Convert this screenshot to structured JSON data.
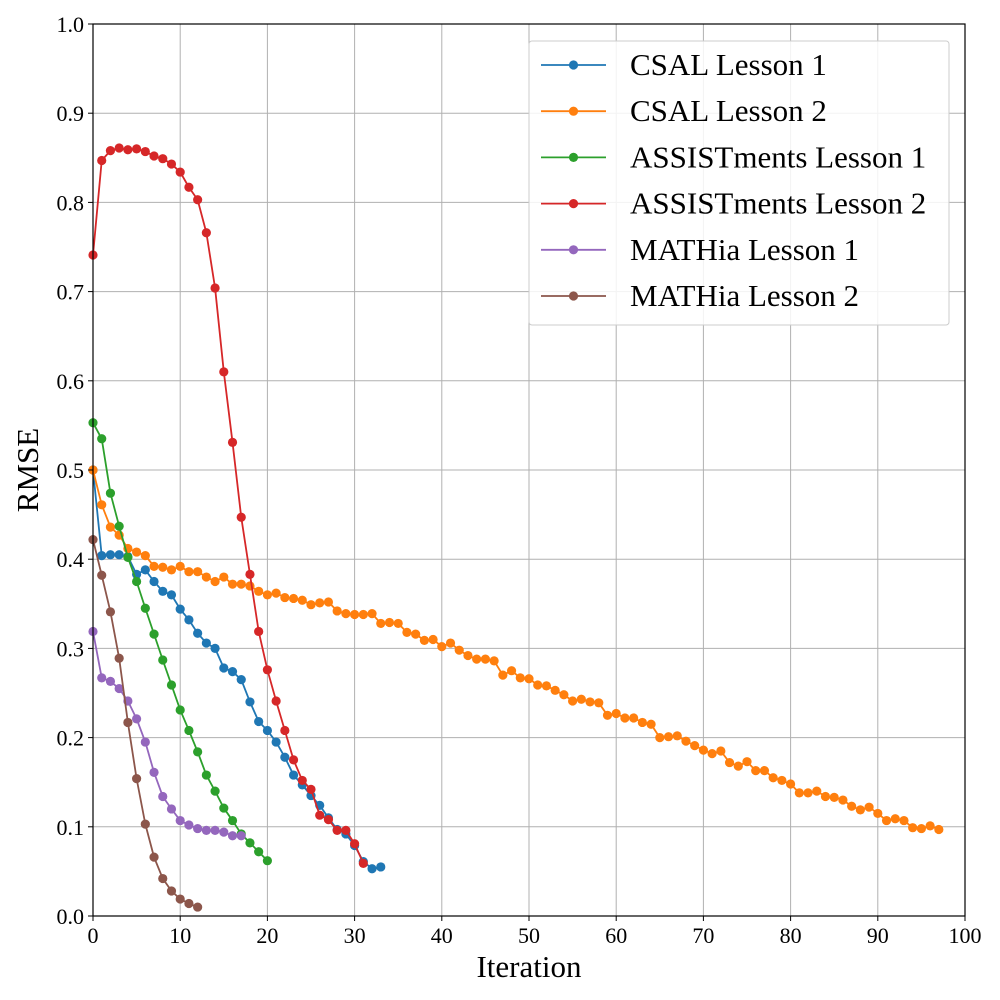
{
  "chart_data": {
    "type": "line",
    "xlabel": "Iteration",
    "ylabel": "RMSE",
    "xlim": [
      0,
      100
    ],
    "ylim": [
      0,
      1.0
    ],
    "xticks": [
      "0",
      "10",
      "20",
      "30",
      "40",
      "50",
      "60",
      "70",
      "80",
      "90",
      "100"
    ],
    "yticks": [
      "0.0",
      "0.1",
      "0.2",
      "0.3",
      "0.4",
      "0.5",
      "0.6",
      "0.7",
      "0.8",
      "0.9",
      "1.0"
    ],
    "grid": true,
    "legend_position": "top-right",
    "series": [
      {
        "name": "CSAL Lesson 1",
        "color": "#1f77b4",
        "values": [
          0.5,
          0.404,
          0.405,
          0.405,
          0.403,
          0.383,
          0.388,
          0.375,
          0.364,
          0.36,
          0.344,
          0.332,
          0.317,
          0.306,
          0.3,
          0.278,
          0.274,
          0.265,
          0.24,
          0.218,
          0.208,
          0.195,
          0.178,
          0.158,
          0.147,
          0.135,
          0.124,
          0.11,
          0.097,
          0.092,
          0.079,
          0.061,
          0.053,
          0.055
        ]
      },
      {
        "name": "CSAL Lesson 2",
        "color": "#ff7f0e",
        "values": [
          0.5,
          0.461,
          0.436,
          0.427,
          0.412,
          0.408,
          0.404,
          0.392,
          0.391,
          0.388,
          0.392,
          0.386,
          0.386,
          0.38,
          0.375,
          0.38,
          0.372,
          0.372,
          0.37,
          0.364,
          0.36,
          0.362,
          0.357,
          0.356,
          0.354,
          0.349,
          0.351,
          0.352,
          0.342,
          0.339,
          0.338,
          0.338,
          0.339,
          0.328,
          0.329,
          0.328,
          0.318,
          0.316,
          0.309,
          0.31,
          0.302,
          0.306,
          0.298,
          0.292,
          0.288,
          0.288,
          0.286,
          0.27,
          0.275,
          0.267,
          0.266,
          0.259,
          0.258,
          0.253,
          0.248,
          0.241,
          0.243,
          0.24,
          0.239,
          0.225,
          0.227,
          0.222,
          0.222,
          0.217,
          0.215,
          0.2,
          0.201,
          0.202,
          0.196,
          0.191,
          0.186,
          0.182,
          0.185,
          0.172,
          0.168,
          0.173,
          0.163,
          0.163,
          0.155,
          0.152,
          0.148,
          0.138,
          0.138,
          0.14,
          0.134,
          0.133,
          0.13,
          0.123,
          0.119,
          0.122,
          0.115,
          0.107,
          0.109,
          0.107,
          0.099,
          0.098,
          0.101,
          0.097
        ]
      },
      {
        "name": "ASSISTments Lesson 1",
        "color": "#2ca02c",
        "values": [
          0.553,
          0.535,
          0.474,
          0.437,
          0.402,
          0.375,
          0.345,
          0.316,
          0.287,
          0.259,
          0.231,
          0.208,
          0.184,
          0.158,
          0.14,
          0.121,
          0.107,
          0.092,
          0.082,
          0.072,
          0.062
        ]
      },
      {
        "name": "ASSISTments Lesson 2",
        "color": "#d62728",
        "values": [
          0.741,
          0.847,
          0.858,
          0.861,
          0.859,
          0.86,
          0.857,
          0.852,
          0.849,
          0.843,
          0.834,
          0.817,
          0.803,
          0.766,
          0.704,
          0.61,
          0.531,
          0.447,
          0.383,
          0.319,
          0.276,
          0.241,
          0.208,
          0.175,
          0.152,
          0.142,
          0.113,
          0.108,
          0.096,
          0.096,
          0.081,
          0.059
        ]
      },
      {
        "name": "MATHia Lesson 1",
        "color": "#9467bd",
        "values": [
          0.319,
          0.267,
          0.263,
          0.255,
          0.241,
          0.221,
          0.195,
          0.161,
          0.134,
          0.12,
          0.107,
          0.102,
          0.098,
          0.096,
          0.096,
          0.094,
          0.09,
          0.09
        ]
      },
      {
        "name": "MATHia Lesson 2",
        "color": "#8c564b",
        "values": [
          0.422,
          0.382,
          0.341,
          0.289,
          0.217,
          0.154,
          0.103,
          0.066,
          0.042,
          0.028,
          0.019,
          0.014,
          0.01
        ]
      }
    ]
  }
}
